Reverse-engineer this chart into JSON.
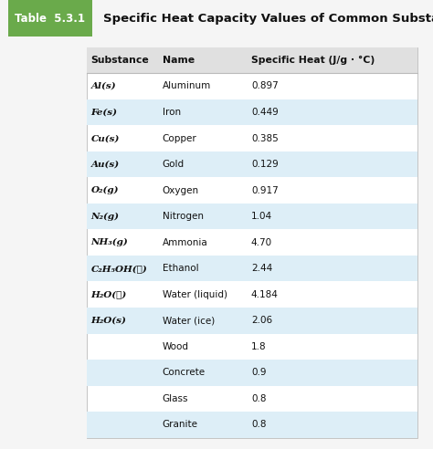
{
  "title": "Specific Heat Capacity Values of Common Substances",
  "table_label": "Table  5.3.1",
  "header_label_color": "#ffffff",
  "header_bg_color": "#6aaa4b",
  "col_headers": [
    "Substance",
    "Name",
    "Specific Heat (J/g · °C)"
  ],
  "rows": [
    {
      "substance": "Al(s)",
      "name": "Aluminum",
      "heat": "0.897",
      "shaded": false
    },
    {
      "substance": "Fe(s)",
      "name": "Iron",
      "heat": "0.449",
      "shaded": true
    },
    {
      "substance": "Cu(s)",
      "name": "Copper",
      "heat": "0.385",
      "shaded": false
    },
    {
      "substance": "Au(s)",
      "name": "Gold",
      "heat": "0.129",
      "shaded": true
    },
    {
      "substance": "O₂(g)",
      "name": "Oxygen",
      "heat": "0.917",
      "shaded": false
    },
    {
      "substance": "N₂(g)",
      "name": "Nitrogen",
      "heat": "1.04",
      "shaded": true
    },
    {
      "substance": "NH₃(g)",
      "name": "Ammonia",
      "heat": "4.70",
      "shaded": false
    },
    {
      "substance": "C₂H₅OH(ℓ)",
      "name": "Ethanol",
      "heat": "2.44",
      "shaded": true
    },
    {
      "substance": "H₂O(ℓ)",
      "name": "Water (liquid)",
      "heat": "4.184",
      "shaded": false
    },
    {
      "substance": "H₂O(s)",
      "name": "Water (ice)",
      "heat": "2.06",
      "shaded": true
    },
    {
      "substance": "",
      "name": "Wood",
      "heat": "1.8",
      "shaded": false
    },
    {
      "substance": "",
      "name": "Concrete",
      "heat": "0.9",
      "shaded": true
    },
    {
      "substance": "",
      "name": "Glass",
      "heat": "0.8",
      "shaded": false
    },
    {
      "substance": "",
      "name": "Granite",
      "heat": "0.8",
      "shaded": true
    }
  ],
  "shaded_color": "#ddeef7",
  "white_color": "#ffffff",
  "outer_bg": "#f5f5f5",
  "border_color": "#bbbbbb",
  "header_row_color": "#e0e0e0",
  "title_bar_bg": "#f5f5f5",
  "font_size_title": 9.5,
  "font_size_label": 8.5,
  "font_size_table": 7.5,
  "font_size_header": 7.8
}
